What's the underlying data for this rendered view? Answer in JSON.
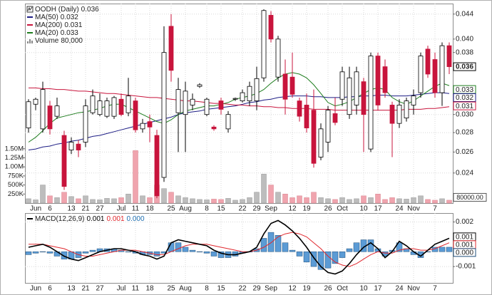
{
  "chart_data": {
    "type": "candlestick",
    "title": "OODH (Daily)",
    "last": 0.036,
    "log_scale": true,
    "grid": true,
    "up_color": "#ffffff",
    "down_color": "#c8143c",
    "ylim": [
      0.0214,
      0.0458
    ],
    "yticks": [
      0.024,
      0.026,
      0.028,
      {
        "value": 0.03,
        "label": "0.030"
      },
      0.038,
      {
        "value": 0.04,
        "label": "0.040"
      },
      0.044
    ],
    "categories": [
      null,
      "Jun",
      null,
      "6",
      null,
      null,
      "13",
      null,
      "21",
      null,
      "27",
      null,
      null,
      "Jul",
      null,
      "11",
      null,
      "18",
      null,
      null,
      "25",
      null,
      "Aug",
      null,
      null,
      "8",
      null,
      "15",
      null,
      null,
      "22",
      null,
      "29",
      null,
      "Sep",
      null,
      null,
      "12",
      null,
      "19",
      null,
      null,
      "26",
      null,
      "Oct",
      null,
      null,
      "10",
      null,
      "17",
      null,
      null,
      "24",
      null,
      "Nov",
      null,
      null,
      "7",
      null,
      null
    ],
    "open": [
      0.0285,
      0.0312,
      0.0284,
      0.031,
      0.0298,
      0.0277,
      0.0262,
      0.0268,
      0.027,
      0.0302,
      0.03,
      0.0298,
      0.0298,
      0.0318,
      0.0302,
      0.0316,
      0.0284,
      0.0292,
      0.0277,
      0.0236,
      0.042,
      0.0302,
      0.03,
      0.0311,
      0.0334,
      0.03,
      0.0286,
      0.0316,
      0.0284,
      0.0318,
      0.0316,
      0.0316,
      0.0316,
      0.0345,
      0.0438,
      0.0346,
      0.035,
      0.0346,
      0.0316,
      0.0311,
      0.0305,
      0.0255,
      0.027,
      0.0301,
      0.0318,
      0.03,
      0.0311,
      0.034,
      0.0263,
      0.0375,
      0.036,
      0.0311,
      0.029,
      0.0296,
      0.0311,
      0.0326,
      0.0385,
      0.037,
      0.0326,
      0.039
    ],
    "high": [
      0.0318,
      0.032,
      0.034,
      0.0316,
      0.032,
      0.0282,
      0.0275,
      0.0272,
      0.0318,
      0.033,
      0.0325,
      0.032,
      0.0322,
      0.0325,
      0.0345,
      0.032,
      0.0295,
      0.03,
      0.0283,
      0.042,
      0.044,
      0.0345,
      0.034,
      0.0325,
      0.0338,
      0.032,
      0.0288,
      0.032,
      0.0304,
      0.032,
      0.033,
      0.034,
      0.036,
      0.0448,
      0.0445,
      0.0405,
      0.037,
      0.038,
      0.032,
      0.0325,
      0.033,
      0.029,
      0.031,
      0.032,
      0.036,
      0.036,
      0.036,
      0.0345,
      0.038,
      0.038,
      0.037,
      0.0315,
      0.0318,
      0.032,
      0.033,
      0.038,
      0.039,
      0.038,
      0.0395,
      0.0395
    ],
    "low": [
      0.028,
      0.0305,
      0.028,
      0.0278,
      0.0295,
      0.0225,
      0.0258,
      0.0255,
      0.0265,
      0.03,
      0.0298,
      0.0296,
      0.0295,
      0.0298,
      0.0298,
      0.028,
      0.028,
      0.027,
      0.0218,
      0.0232,
      0.034,
      0.026,
      0.026,
      0.0305,
      0.0332,
      0.0298,
      0.0282,
      0.03,
      0.028,
      0.0316,
      0.0314,
      0.031,
      0.0305,
      0.034,
      0.0395,
      0.034,
      0.03,
      0.032,
      0.0292,
      0.028,
      0.0245,
      0.0252,
      0.026,
      0.0288,
      0.031,
      0.0295,
      0.03,
      0.026,
      0.026,
      0.0305,
      0.032,
      0.0255,
      0.0285,
      0.0292,
      0.03,
      0.032,
      0.0345,
      0.032,
      0.031,
      0.035
    ],
    "close": [
      0.0315,
      0.0318,
      0.033,
      0.0284,
      0.031,
      0.0228,
      0.027,
      0.0262,
      0.031,
      0.0322,
      0.0316,
      0.0316,
      0.032,
      0.03,
      0.0322,
      0.0283,
      0.029,
      0.0286,
      0.022,
      0.038,
      0.0355,
      0.033,
      0.0328,
      0.0318,
      0.0336,
      0.0318,
      0.0284,
      0.0306,
      0.03,
      0.0319,
      0.0326,
      0.0334,
      0.0344,
      0.0446,
      0.04,
      0.04,
      0.0318,
      0.0324,
      0.0298,
      0.0285,
      0.0249,
      0.0284,
      0.0305,
      0.0291,
      0.0353,
      0.0345,
      0.0353,
      0.03,
      0.0375,
      0.0311,
      0.0326,
      0.029,
      0.0311,
      0.0316,
      0.0322,
      0.0375,
      0.035,
      0.0326,
      0.039,
      0.036
    ],
    "overlays": [
      {
        "name": "MA(50)",
        "color": "#1c1c84",
        "last": 0.032,
        "values": [
          0.0262,
          0.0263,
          0.0265,
          0.0266,
          0.0268,
          0.0269,
          0.0271,
          0.0272,
          0.0274,
          0.0276,
          0.0277,
          0.0279,
          0.0281,
          0.0283,
          0.0285,
          0.0287,
          0.0289,
          0.0291,
          0.0293,
          0.0295,
          0.0297,
          0.03,
          0.0302,
          0.0303,
          0.0304,
          0.0306,
          0.0307,
          0.0308,
          0.0309,
          0.031,
          0.0312,
          0.0314,
          0.0315,
          0.0317,
          0.0318,
          0.032,
          0.0321,
          0.0322,
          0.0322,
          0.0322,
          0.0321,
          0.0321,
          0.032,
          0.032,
          0.032,
          0.0321,
          0.0321,
          0.0322,
          0.0322,
          0.0323,
          0.0323,
          0.0322,
          0.0322,
          0.0322,
          0.0323,
          0.0324,
          0.0325,
          0.0326,
          0.0326,
          0.0325
        ]
      },
      {
        "name": "MA(200)",
        "color": "#c8143c",
        "last": 0.031,
        "values": [
          0.0332,
          0.0332,
          0.0331,
          0.0331,
          0.033,
          0.033,
          0.0329,
          0.0328,
          0.0328,
          0.0327,
          0.0326,
          0.0325,
          0.0325,
          0.0324,
          0.0323,
          0.0322,
          0.0321,
          0.032,
          0.032,
          0.0319,
          0.0318,
          0.0317,
          0.0316,
          0.0316,
          0.0315,
          0.0314,
          0.0313,
          0.0313,
          0.0312,
          0.0311,
          0.0311,
          0.031,
          0.031,
          0.0309,
          0.0309,
          0.0308,
          0.0308,
          0.0307,
          0.0307,
          0.0307,
          0.0306,
          0.0306,
          0.0306,
          0.0305,
          0.0305,
          0.0305,
          0.0305,
          0.0305,
          0.0305,
          0.0305,
          0.0305,
          0.0305,
          0.0305,
          0.0306,
          0.0306,
          0.0306,
          0.0307,
          0.0307,
          0.0308,
          0.0309
        ]
      },
      {
        "name": "MA(20)",
        "color": "#1e7d1e",
        "last": 0.033,
        "values": [
          0.027,
          0.0275,
          0.0282,
          0.029,
          0.0296,
          0.0298,
          0.03,
          0.0302,
          0.0303,
          0.0305,
          0.0307,
          0.031,
          0.0312,
          0.0312,
          0.0308,
          0.0304,
          0.03,
          0.0296,
          0.0292,
          0.029,
          0.0294,
          0.03,
          0.0304,
          0.0306,
          0.0308,
          0.031,
          0.031,
          0.0312,
          0.0314,
          0.0318,
          0.032,
          0.0322,
          0.0325,
          0.033,
          0.0338,
          0.0345,
          0.035,
          0.0352,
          0.035,
          0.0345,
          0.0336,
          0.0325,
          0.0314,
          0.031,
          0.0312,
          0.0315,
          0.032,
          0.0325,
          0.033,
          0.0332,
          0.033,
          0.032,
          0.0315,
          0.0312,
          0.0316,
          0.0322,
          0.0328,
          0.0334,
          0.0338,
          0.0335
        ]
      }
    ],
    "volume": {
      "name": "Volume",
      "last": {
        "value": 80000,
        "label": "80,000"
      },
      "tag": {
        "value": 80000,
        "label": "80000.00"
      },
      "up_color": "#bdbdbd",
      "down_color": "#f0a4ae",
      "ylim": [
        0,
        5510000
      ],
      "yticks": [
        {
          "value": 250000,
          "label": "250K"
        },
        {
          "value": 500000,
          "label": "500K"
        },
        {
          "value": 750000,
          "label": "750K"
        },
        {
          "value": 1000000,
          "label": "1.00M"
        },
        {
          "value": 1250000,
          "label": "1.25M"
        },
        {
          "value": 1500000,
          "label": "1.50M"
        }
      ],
      "values": [
        120000,
        90000,
        500000,
        200000,
        150000,
        300000,
        180000,
        120000,
        200000,
        100000,
        90000,
        130000,
        120000,
        150000,
        250000,
        1450000,
        200000,
        150000,
        500000,
        400000,
        300000,
        200000,
        150000,
        120000,
        100000,
        90000,
        110000,
        100000,
        130000,
        80000,
        100000,
        150000,
        300000,
        800000,
        500000,
        300000,
        250000,
        150000,
        200000,
        150000,
        300000,
        150000,
        120000,
        100000,
        150000,
        100000,
        120000,
        200000,
        150000,
        250000,
        100000,
        150000,
        120000,
        110000,
        150000,
        200000,
        100000,
        80000,
        120000,
        80000
      ]
    },
    "macd": {
      "name": "MACD(12,26,9)",
      "ylim": [
        -0.0021,
        0.0026
      ],
      "yticks": [
        0.002,
        -0.001
      ],
      "macd_line": {
        "color": "#000000",
        "last": 0.001,
        "values": [
          0.0003,
          0.0004,
          0.0005,
          0.0003,
          0,
          -0.0003,
          -0.0005,
          -0.0006,
          -0.0004,
          -0.0002,
          0,
          0.0001,
          0.0002,
          0.0002,
          0.0001,
          0,
          -0.0002,
          -0.0003,
          -0.0005,
          -0.0003,
          0.0006,
          0.0008,
          0.0007,
          0.0006,
          0.0005,
          0.0004,
          0.0001,
          -0.0001,
          -0.0002,
          -0.0002,
          -0.0001,
          0,
          0.0003,
          0.0012,
          0.0019,
          0.0021,
          0.0018,
          0.0014,
          0.0009,
          0.0003,
          -0.0004,
          -0.001,
          -0.0014,
          -0.0015,
          -0.0013,
          -0.0008,
          -0.0002,
          0.0003,
          0.0006,
          0.0002,
          -0.0004,
          0,
          0.0007,
          0.0004,
          0,
          -0.0003,
          0.0001,
          0.0005,
          0.0007,
          0.0009
        ]
      },
      "signal_line": {
        "color": "#e0282e",
        "last": 0.001,
        "values": [
          0.0005,
          0.0005,
          0.0005,
          0.0004,
          0.0003,
          0.0002,
          0,
          -0.0002,
          -0.0003,
          -0.0003,
          -0.0002,
          -0.0001,
          0,
          0.0001,
          0.0001,
          0.0001,
          0,
          -0.0001,
          -0.0002,
          -0.0002,
          0,
          0.0002,
          0.0004,
          0.0005,
          0.0005,
          0.0005,
          0.0004,
          0.0003,
          0.0002,
          0.0001,
          0,
          0,
          0.0001,
          0.0003,
          0.0006,
          0.001,
          0.0012,
          0.0013,
          0.0012,
          0.001,
          0.0006,
          0.0002,
          -0.0003,
          -0.0007,
          -0.0009,
          -0.001,
          -0.0008,
          -0.0005,
          -0.0002,
          0,
          -0.0001,
          -0.0001,
          0.0001,
          0.0002,
          0.0002,
          0.0001,
          0.0001,
          0.0002,
          0.0004,
          0.0006
        ]
      },
      "histogram": {
        "color": "#5b9bd5",
        "last": {
          "value": 0,
          "label": "0.000"
        },
        "values": [
          -0.0002,
          -0.0001,
          0,
          -0.0001,
          -0.0003,
          -0.0005,
          -0.0005,
          -0.0004,
          -0.0001,
          0.0001,
          0.0002,
          0.0002,
          0.0002,
          0.0001,
          0,
          -0.0001,
          -0.0002,
          -0.0002,
          -0.0003,
          -0.0001,
          0.0006,
          0.0006,
          0.0003,
          0.0001,
          0,
          -0.0001,
          -0.0003,
          -0.0004,
          -0.0004,
          -0.0003,
          -0.0001,
          0,
          0.0002,
          0.0009,
          0.0013,
          0.0011,
          0.0006,
          0.0001,
          -0.0003,
          -0.0007,
          -0.001,
          -0.0012,
          -0.0011,
          -0.0008,
          -0.0004,
          0.0002,
          0.0006,
          0.0008,
          0.0008,
          0.0002,
          -0.0003,
          0.0001,
          0.0006,
          0.0002,
          -0.0002,
          -0.0004,
          0,
          0.0003,
          0.0003,
          0.0003
        ]
      }
    }
  }
}
